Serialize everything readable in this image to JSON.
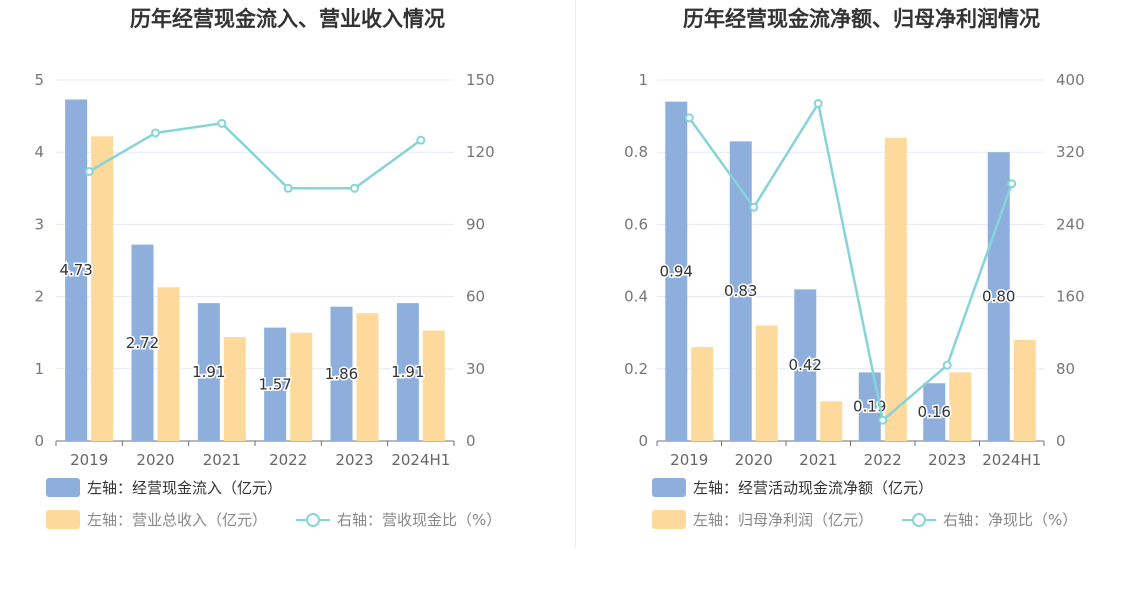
{
  "chart_data": [
    {
      "type": "bar+line",
      "title": "历年经营现金流入、营业收入情况",
      "categories": [
        "2019",
        "2020",
        "2021",
        "2022",
        "2023",
        "2024H1"
      ],
      "left_axis": {
        "ticks": [
          "0",
          "1",
          "2",
          "3",
          "4",
          "5"
        ],
        "ylim": [
          0,
          5
        ]
      },
      "right_axis": {
        "ticks": [
          "0",
          "30",
          "60",
          "90",
          "120",
          "150"
        ],
        "ylim": [
          0,
          150
        ]
      },
      "series": [
        {
          "name": "经营现金流入（亿元）",
          "axis": "left",
          "type": "bar",
          "color": "#8eaedc",
          "values": [
            4.73,
            2.72,
            1.91,
            1.57,
            1.86,
            1.91
          ],
          "labels": [
            "4.73",
            "2.72",
            "1.91",
            "1.57",
            "1.86",
            "1.91"
          ]
        },
        {
          "name": "营业总收入（亿元）",
          "axis": "left",
          "type": "bar",
          "color": "#fdd99b",
          "values": [
            4.22,
            2.13,
            1.44,
            1.5,
            1.77,
            1.53
          ]
        },
        {
          "name": "营收现金比（%）",
          "axis": "right",
          "type": "line",
          "color": "#86d4d8",
          "values": [
            112,
            128,
            132,
            105,
            105,
            125
          ]
        }
      ],
      "legend": [
        {
          "prefix": "左轴：",
          "name": "经营现金流入（亿元）",
          "kind": "bar",
          "color": "#8eaedc"
        },
        {
          "prefix": "左轴：",
          "name": "营业总收入（亿元）",
          "kind": "bar",
          "color": "#fdd99b"
        },
        {
          "prefix": "右轴：",
          "name": "营收现金比（%）",
          "kind": "line",
          "color": "#86d4d8"
        }
      ]
    },
    {
      "type": "bar+line",
      "title": "历年经营现金流净额、归母净利润情况",
      "categories": [
        "2019",
        "2020",
        "2021",
        "2022",
        "2023",
        "2024H1"
      ],
      "left_axis": {
        "ticks": [
          "0",
          "0.2",
          "0.4",
          "0.6",
          "0.8",
          "1"
        ],
        "ylim": [
          0,
          1
        ]
      },
      "right_axis": {
        "ticks": [
          "0",
          "80",
          "160",
          "240",
          "320",
          "400"
        ],
        "ylim": [
          0,
          400
        ]
      },
      "series": [
        {
          "name": "经营活动现金流净额（亿元）",
          "axis": "left",
          "type": "bar",
          "color": "#8eaedc",
          "values": [
            0.94,
            0.83,
            0.42,
            0.19,
            0.16,
            0.8
          ],
          "labels": [
            "0.94",
            "0.83",
            "0.42",
            "0.19",
            "0.16",
            "0.80"
          ]
        },
        {
          "name": "归母净利润（亿元）",
          "axis": "left",
          "type": "bar",
          "color": "#fdd99b",
          "values": [
            0.26,
            0.32,
            0.11,
            0.84,
            0.19,
            0.28
          ]
        },
        {
          "name": "净现比（%）",
          "axis": "right",
          "type": "line",
          "color": "#86d4d8",
          "values": [
            358,
            259,
            374,
            23,
            84,
            285
          ]
        }
      ],
      "legend": [
        {
          "prefix": "左轴：",
          "name": "经营活动现金流净额（亿元）",
          "kind": "bar",
          "color": "#8eaedc"
        },
        {
          "prefix": "左轴：",
          "name": "归母净利润（亿元）",
          "kind": "bar",
          "color": "#fdd99b"
        },
        {
          "prefix": "右轴：",
          "name": "净现比（%）",
          "kind": "line",
          "color": "#86d4d8"
        }
      ]
    }
  ]
}
